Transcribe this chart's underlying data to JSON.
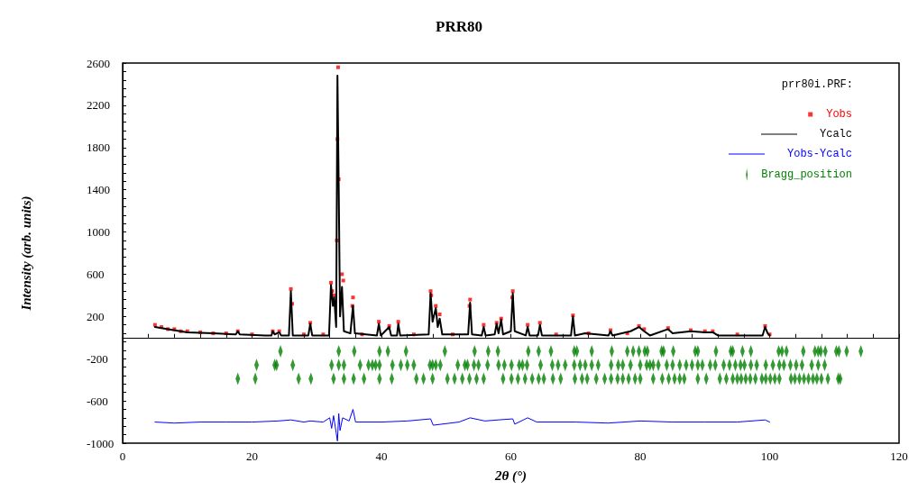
{
  "chart_data": {
    "type": "line",
    "title": "PRR80",
    "xlabel": "2θ (°)",
    "ylabel": "Intensity (arb. units)",
    "legend_title": "prr80i.PRF:",
    "legend": "top right",
    "grid": false,
    "xlim": [
      0,
      120
    ],
    "ylim": [
      -1000,
      2600
    ],
    "xticks": [
      0,
      {
        "value": 4,
        "label": null
      },
      {
        "value": 8,
        "label": null
      },
      {
        "value": 12,
        "label": null
      },
      {
        "value": 16,
        "label": null
      },
      20,
      {
        "value": 24,
        "label": null
      },
      {
        "value": 28,
        "label": null
      },
      {
        "value": 32,
        "label": null
      },
      {
        "value": 36,
        "label": null
      },
      40,
      {
        "value": 44,
        "label": null
      },
      {
        "value": 48,
        "label": null
      },
      {
        "value": 52,
        "label": null
      },
      {
        "value": 56,
        "label": null
      },
      60,
      {
        "value": 64,
        "label": null
      },
      {
        "value": 68,
        "label": null
      },
      {
        "value": 72,
        "label": null
      },
      {
        "value": 76,
        "label": null
      },
      80,
      {
        "value": 84,
        "label": null
      },
      {
        "value": 88,
        "label": null
      },
      {
        "value": 92,
        "label": null
      },
      {
        "value": 96,
        "label": null
      },
      100,
      {
        "value": 104,
        "label": null
      },
      {
        "value": 108,
        "label": null
      },
      {
        "value": 112,
        "label": null
      },
      {
        "value": 116,
        "label": null
      },
      120
    ],
    "yticks": [
      -1000,
      {
        "value": -920,
        "label": null
      },
      {
        "value": -840,
        "label": null
      },
      {
        "value": -760,
        "label": null
      },
      {
        "value": -680,
        "label": null
      },
      -600,
      {
        "value": -520,
        "label": null
      },
      {
        "value": -440,
        "label": null
      },
      {
        "value": -360,
        "label": null
      },
      {
        "value": -280,
        "label": null
      },
      -200,
      {
        "value": -120,
        "label": null
      },
      {
        "value": -40,
        "label": null
      },
      {
        "value": 40,
        "label": null
      },
      {
        "value": 120,
        "label": null
      },
      200,
      {
        "value": 280,
        "label": null
      },
      {
        "value": 360,
        "label": null
      },
      {
        "value": 440,
        "label": null
      },
      {
        "value": 520,
        "label": null
      },
      600,
      {
        "value": 680,
        "label": null
      },
      {
        "value": 760,
        "label": null
      },
      {
        "value": 840,
        "label": null
      },
      {
        "value": 920,
        "label": null
      },
      1000,
      {
        "value": 1080,
        "label": null
      },
      {
        "value": 1160,
        "label": null
      },
      {
        "value": 1240,
        "label": null
      },
      {
        "value": 1320,
        "label": null
      },
      1400,
      {
        "value": 1480,
        "label": null
      },
      {
        "value": 1560,
        "label": null
      },
      {
        "value": 1640,
        "label": null
      },
      {
        "value": 1720,
        "label": null
      },
      1800,
      {
        "value": 1880,
        "label": null
      },
      {
        "value": 1960,
        "label": null
      },
      {
        "value": 2040,
        "label": null
      },
      {
        "value": 2120,
        "label": null
      },
      2200,
      {
        "value": 2280,
        "label": null
      },
      {
        "value": 2360,
        "label": null
      },
      {
        "value": 2440,
        "label": null
      },
      {
        "value": 2520,
        "label": null
      },
      2600
    ],
    "series": [
      {
        "name": "Yobs",
        "type": "scatter",
        "marker": "square",
        "color": "#ff0000",
        "x": [
          5,
          6,
          7,
          8,
          9,
          10,
          12,
          14,
          16,
          17.8,
          20,
          23.2,
          24.2,
          26,
          26.2,
          28,
          29,
          31,
          32.2,
          32.4,
          32.7,
          33.1,
          33.2,
          33.3,
          33.4,
          33.9,
          34.1,
          35.5,
          35.6,
          37,
          39.6,
          41.2,
          42.6,
          45,
          47.6,
          47.7,
          48.4,
          49,
          51,
          53.6,
          53.7,
          55.8,
          57.8,
          58.5,
          60.2,
          60.3,
          62.6,
          64.5,
          67,
          69.6,
          72,
          75.4,
          78,
          79.8,
          80.6,
          84.3,
          87.8,
          90,
          91.2,
          95,
          99.3,
          100
        ],
        "values": [
          120,
          100,
          80,
          80,
          60,
          60,
          50,
          40,
          40,
          60,
          30,
          60,
          60,
          460,
          320,
          30,
          140,
          30,
          520,
          440,
          400,
          920,
          1880,
          2560,
          1500,
          600,
          540,
          300,
          380,
          30,
          150,
          110,
          150,
          30,
          440,
          400,
          300,
          220,
          30,
          300,
          360,
          120,
          140,
          180,
          380,
          440,
          120,
          140,
          30,
          210,
          40,
          70,
          40,
          110,
          80,
          90,
          70,
          60,
          60,
          30,
          110,
          30
        ]
      },
      {
        "name": "Ycalc",
        "color": "#000000",
        "x": [
          5,
          7,
          10,
          14,
          17.5,
          17.8,
          18.1,
          22,
          23,
          23.2,
          23.5,
          24.2,
          24.5,
          25.7,
          26,
          26.3,
          28.7,
          29,
          29.3,
          31.9,
          32.2,
          32.5,
          32.7,
          33.0,
          33.2,
          33.4,
          33.6,
          33.9,
          34.2,
          35.2,
          35.6,
          35.9,
          39.3,
          39.6,
          39.9,
          41.2,
          41.5,
          42.4,
          42.6,
          42.9,
          47.3,
          47.6,
          47.9,
          48.4,
          48.7,
          49,
          49.4,
          53.4,
          53.7,
          54,
          55.5,
          55.8,
          56.1,
          57.5,
          57.8,
          58.1,
          58.5,
          58.8,
          60,
          60.3,
          60.6,
          62.3,
          62.6,
          62.9,
          64.2,
          64.5,
          64.8,
          69.3,
          69.6,
          69.9,
          71.5,
          75.1,
          75.4,
          75.7,
          78.5,
          79.8,
          80.6,
          81.5,
          84.3,
          85,
          87.8,
          90,
          91.2,
          92,
          98.9,
          99.3,
          99.7,
          100
        ],
        "values": [
          100,
          80,
          50,
          40,
          30,
          60,
          30,
          20,
          20,
          60,
          30,
          50,
          20,
          20,
          440,
          20,
          20,
          130,
          20,
          20,
          500,
          300,
          380,
          100,
          2480,
          1400,
          200,
          480,
          60,
          40,
          300,
          40,
          20,
          130,
          20,
          100,
          20,
          20,
          130,
          20,
          30,
          420,
          150,
          280,
          100,
          180,
          30,
          30,
          330,
          30,
          20,
          100,
          20,
          30,
          130,
          40,
          170,
          30,
          60,
          420,
          60,
          20,
          100,
          20,
          20,
          120,
          20,
          20,
          200,
          20,
          40,
          20,
          60,
          20,
          60,
          100,
          60,
          20,
          80,
          40,
          60,
          50,
          50,
          20,
          20,
          100,
          40,
          20
        ]
      },
      {
        "name": "Yobs-Ycalc",
        "color": "#0000ff",
        "x": [
          5,
          8,
          12,
          16,
          20,
          24,
          26,
          28,
          29,
          31,
          32,
          32.3,
          32.6,
          33,
          33.2,
          33.4,
          33.6,
          34,
          35,
          35.6,
          36,
          40,
          44,
          47.6,
          48,
          52,
          53.7,
          56,
          58,
          60.3,
          60.6,
          62.6,
          64,
          70,
          75,
          80,
          85,
          90,
          95,
          99.3,
          100
        ],
        "values": [
          -800,
          -810,
          -800,
          -800,
          -800,
          -790,
          -780,
          -800,
          -790,
          -800,
          -760,
          -860,
          -740,
          -900,
          -980,
          -720,
          -880,
          -760,
          -790,
          -680,
          -800,
          -800,
          -790,
          -770,
          -830,
          -800,
          -760,
          -790,
          -780,
          -770,
          -820,
          -760,
          -800,
          -800,
          -810,
          -790,
          -800,
          -800,
          -800,
          -780,
          -800
        ]
      },
      {
        "name": "Bragg_position",
        "type": "scatter",
        "marker": "diamond",
        "color": "#008000",
        "x": [
          24.4,
          33.4,
          35.8,
          39.7,
          41.0,
          43.8,
          49.8,
          54.4,
          56.5,
          58.0,
          62.7,
          64.3,
          66.2,
          69.8,
          70.2,
          72.5,
          75.6,
          78.0,
          78.9,
          79.8,
          80.7,
          81.1,
          83.3,
          83.6,
          85.1,
          88.5,
          88.9,
          91.7,
          94.0,
          94.3,
          95.8,
          97.1,
          101.4,
          101.9,
          102.6,
          105.2,
          107.0,
          107.5,
          107.9,
          108.6,
          110.3,
          110.7,
          111.9,
          114.1
        ],
        "values": [
          -130,
          -130,
          -130,
          -130,
          -130,
          -130,
          -130,
          -130,
          -130,
          -130,
          -130,
          -130,
          -130,
          -130,
          -130,
          -130,
          -130,
          -130,
          -130,
          -130,
          -130,
          -130,
          -130,
          -130,
          -130,
          -130,
          -130,
          -130,
          -130,
          -130,
          -130,
          -130,
          -130,
          -130,
          -130,
          -130,
          -130,
          -130,
          -130,
          -130,
          -130,
          -130,
          -130,
          -130
        ]
      },
      {
        "type": "scatter",
        "marker": "diamond",
        "color": "#008000",
        "x": [
          20.7,
          23.5,
          23.8,
          26.3,
          32.3,
          33.4,
          34.2,
          36.7,
          38.0,
          38.6,
          39.1,
          39.7,
          41.7,
          43.0,
          44.0,
          45.0,
          47.5,
          47.9,
          48.4,
          49.1,
          51.8,
          52.9,
          53.3,
          54.3,
          55.0,
          56.4,
          58.1,
          59.0,
          60.1,
          61.3,
          61.8,
          62.5,
          64.6,
          66.4,
          67.3,
          68.4,
          69.8,
          70.7,
          71.5,
          72.5,
          73.5,
          75.5,
          76.6,
          77.3,
          78.5,
          80.0,
          81.0,
          81.5,
          82.0,
          82.8,
          84.1,
          85.0,
          86.1,
          87.1,
          88.0,
          88.9,
          89.6,
          90.8,
          91.6,
          92.9,
          93.8,
          94.7,
          95.5,
          96.1,
          97.1,
          98.0,
          99.4,
          100.5,
          101.5,
          102.2,
          103.2,
          104.1,
          105.0,
          106.5,
          107.5,
          108.5
        ],
        "values": [
          -260,
          -260,
          -260,
          -260,
          -260,
          -260,
          -260,
          -260,
          -260,
          -260,
          -260,
          -260,
          -260,
          -260,
          -260,
          -260,
          -260,
          -260,
          -260,
          -260,
          -260,
          -260,
          -260,
          -260,
          -260,
          -260,
          -260,
          -260,
          -260,
          -260,
          -260,
          -260,
          -260,
          -260,
          -260,
          -260,
          -260,
          -260,
          -260,
          -260,
          -260,
          -260,
          -260,
          -260,
          -260,
          -260,
          -260,
          -260,
          -260,
          -260,
          -260,
          -260,
          -260,
          -260,
          -260,
          -260,
          -260,
          -260,
          -260,
          -260,
          -260,
          -260,
          -260,
          -260,
          -260,
          -260,
          -260,
          -260,
          -260,
          -260,
          -260,
          -260,
          -260,
          -260,
          -260,
          -260
        ]
      },
      {
        "type": "scatter",
        "marker": "diamond",
        "color": "#008000",
        "x": [
          17.8,
          20.5,
          27.2,
          29.1,
          32.6,
          34.2,
          35.7,
          37.3,
          39.7,
          41.6,
          45.4,
          46.5,
          47.9,
          50.2,
          51.3,
          52.5,
          53.6,
          54.7,
          55.8,
          58.8,
          60.1,
          61.1,
          62.2,
          63.3,
          64.3,
          65.1,
          66.5,
          67.7,
          69.9,
          71.0,
          71.8,
          73.2,
          74.5,
          75.5,
          76.5,
          77.3,
          78.2,
          79.2,
          80.0,
          82.0,
          83.4,
          84.4,
          85.3,
          86.1,
          86.8,
          88.9,
          90.2,
          92.3,
          93.3,
          94.3,
          95.0,
          95.6,
          96.3,
          97.0,
          97.8,
          98.8,
          99.4,
          100.1,
          100.8,
          101.5,
          103.3,
          103.9,
          104.6,
          105.3,
          106.0,
          106.7,
          107.3,
          108.0,
          109.0,
          110.6,
          110.9
        ],
        "values": [
          -390,
          -390,
          -390,
          -390,
          -390,
          -390,
          -390,
          -390,
          -390,
          -390,
          -390,
          -390,
          -390,
          -390,
          -390,
          -390,
          -390,
          -390,
          -390,
          -390,
          -390,
          -390,
          -390,
          -390,
          -390,
          -390,
          -390,
          -390,
          -390,
          -390,
          -390,
          -390,
          -390,
          -390,
          -390,
          -390,
          -390,
          -390,
          -390,
          -390,
          -390,
          -390,
          -390,
          -390,
          -390,
          -390,
          -390,
          -390,
          -390,
          -390,
          -390,
          -390,
          -390,
          -390,
          -390,
          -390,
          -390,
          -390,
          -390,
          -390,
          -390,
          -390,
          -390,
          -390,
          -390,
          -390,
          -390,
          -390,
          -390,
          -390,
          -390
        ]
      }
    ]
  }
}
